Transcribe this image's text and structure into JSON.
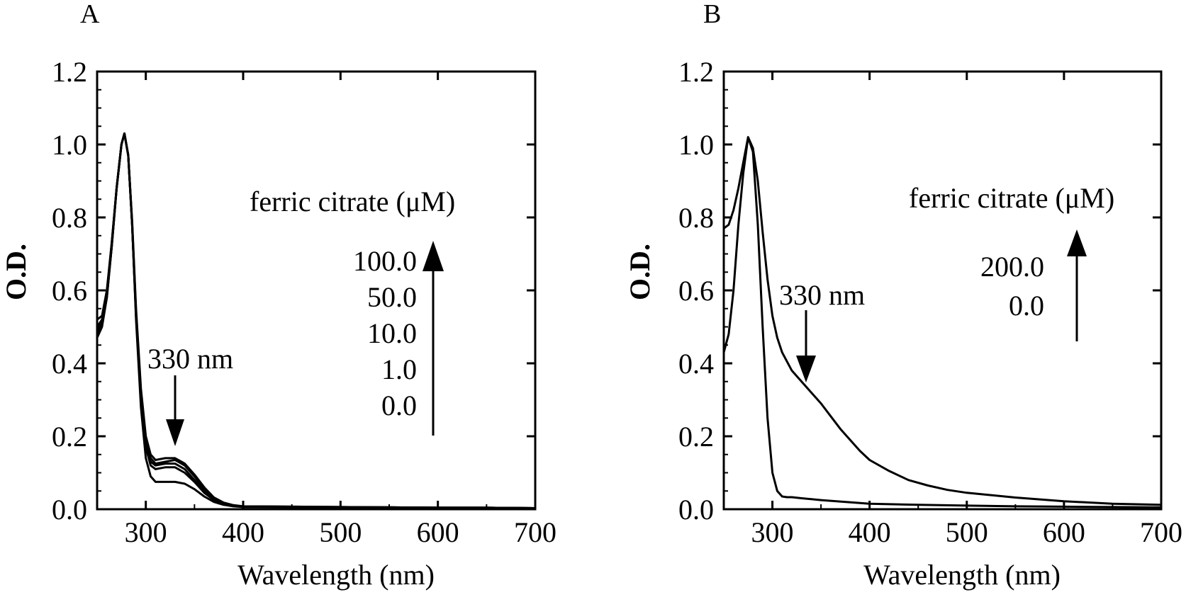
{
  "chart_data": [
    {
      "type": "line",
      "panel_label": "A",
      "xlabel": "Wavelength (nm)",
      "ylabel": "O.D.",
      "xlim": [
        250,
        700
      ],
      "ylim": [
        0,
        1.2
      ],
      "xticks": [
        300,
        400,
        500,
        600,
        700
      ],
      "yticks": [
        0.0,
        0.2,
        0.4,
        0.6,
        0.8,
        1.0,
        1.2
      ],
      "grid": false,
      "legend_title": "ferric citrate (μM)",
      "legend_entries": [
        "100.0",
        "50.0",
        "10.0",
        "1.0",
        "0.0"
      ],
      "peak_annotation": "330 nm",
      "peak_annotation_x": 330,
      "series": [
        {
          "name": "0.0",
          "x": [
            250,
            255,
            260,
            265,
            270,
            275,
            278,
            282,
            286,
            290,
            295,
            300,
            305,
            310,
            320,
            330,
            340,
            350,
            360,
            370,
            380,
            390,
            400,
            450,
            500,
            550,
            600,
            650,
            700
          ],
          "y": [
            0.47,
            0.5,
            0.58,
            0.72,
            0.88,
            1.0,
            1.03,
            0.97,
            0.78,
            0.52,
            0.28,
            0.14,
            0.09,
            0.075,
            0.075,
            0.075,
            0.07,
            0.055,
            0.035,
            0.02,
            0.012,
            0.008,
            0.006,
            0.006,
            0.005,
            0.005,
            0.004,
            0.004,
            0.003
          ]
        },
        {
          "name": "1.0",
          "x": [
            250,
            255,
            260,
            265,
            270,
            275,
            278,
            282,
            286,
            290,
            295,
            300,
            305,
            310,
            320,
            330,
            340,
            350,
            360,
            370,
            380,
            390,
            400,
            450,
            500,
            550,
            600,
            650,
            700
          ],
          "y": [
            0.48,
            0.51,
            0.58,
            0.72,
            0.88,
            1.0,
            1.03,
            0.97,
            0.78,
            0.53,
            0.3,
            0.17,
            0.12,
            0.11,
            0.115,
            0.115,
            0.1,
            0.075,
            0.045,
            0.025,
            0.014,
            0.009,
            0.007,
            0.006,
            0.005,
            0.005,
            0.004,
            0.004,
            0.003
          ]
        },
        {
          "name": "10.0",
          "x": [
            250,
            255,
            260,
            265,
            270,
            275,
            278,
            282,
            286,
            290,
            295,
            300,
            305,
            310,
            320,
            330,
            340,
            350,
            360,
            370,
            380,
            390,
            400,
            450,
            500,
            550,
            600,
            650,
            700
          ],
          "y": [
            0.49,
            0.51,
            0.59,
            0.72,
            0.88,
            1.0,
            1.03,
            0.97,
            0.78,
            0.53,
            0.31,
            0.18,
            0.13,
            0.12,
            0.125,
            0.125,
            0.11,
            0.08,
            0.05,
            0.027,
            0.015,
            0.01,
            0.007,
            0.006,
            0.005,
            0.005,
            0.004,
            0.004,
            0.003
          ]
        },
        {
          "name": "50.0",
          "x": [
            250,
            255,
            260,
            265,
            270,
            275,
            278,
            282,
            286,
            290,
            295,
            300,
            305,
            310,
            320,
            330,
            340,
            350,
            360,
            370,
            380,
            390,
            400,
            450,
            500,
            550,
            600,
            650,
            700
          ],
          "y": [
            0.5,
            0.52,
            0.59,
            0.73,
            0.88,
            1.0,
            1.03,
            0.97,
            0.78,
            0.54,
            0.32,
            0.19,
            0.14,
            0.125,
            0.13,
            0.135,
            0.12,
            0.09,
            0.055,
            0.03,
            0.016,
            0.01,
            0.008,
            0.007,
            0.006,
            0.005,
            0.004,
            0.004,
            0.003
          ]
        },
        {
          "name": "100.0",
          "x": [
            250,
            255,
            260,
            265,
            270,
            275,
            278,
            282,
            286,
            290,
            295,
            300,
            305,
            310,
            320,
            330,
            340,
            350,
            360,
            370,
            380,
            390,
            400,
            450,
            500,
            550,
            600,
            650,
            700
          ],
          "y": [
            0.52,
            0.53,
            0.6,
            0.73,
            0.88,
            1.0,
            1.03,
            0.97,
            0.79,
            0.55,
            0.33,
            0.2,
            0.15,
            0.135,
            0.14,
            0.14,
            0.125,
            0.095,
            0.06,
            0.032,
            0.018,
            0.011,
            0.008,
            0.007,
            0.006,
            0.005,
            0.004,
            0.004,
            0.003
          ]
        }
      ]
    },
    {
      "type": "line",
      "panel_label": "B",
      "xlabel": "Wavelength (nm)",
      "ylabel": "O.D.",
      "xlim": [
        250,
        700
      ],
      "ylim": [
        0,
        1.2
      ],
      "xticks": [
        300,
        400,
        500,
        600,
        700
      ],
      "yticks": [
        0.0,
        0.2,
        0.4,
        0.6,
        0.8,
        1.0,
        1.2
      ],
      "grid": false,
      "legend_title": "ferric citrate (μM)",
      "legend_entries": [
        "200.0",
        "0.0"
      ],
      "peak_annotation": "330 nm",
      "peak_annotation_x": 330,
      "series": [
        {
          "name": "0.0",
          "x": [
            250,
            255,
            260,
            265,
            270,
            275,
            280,
            285,
            290,
            295,
            300,
            305,
            310,
            315,
            320,
            330,
            350,
            400,
            450,
            500,
            550,
            600,
            650,
            700
          ],
          "y": [
            0.43,
            0.48,
            0.6,
            0.78,
            0.92,
            1.02,
            0.98,
            0.78,
            0.5,
            0.25,
            0.1,
            0.05,
            0.035,
            0.033,
            0.033,
            0.03,
            0.025,
            0.015,
            0.012,
            0.01,
            0.008,
            0.007,
            0.006,
            0.005
          ]
        },
        {
          "name": "200.0",
          "x": [
            250,
            255,
            260,
            265,
            270,
            275,
            280,
            285,
            290,
            295,
            300,
            305,
            310,
            320,
            330,
            340,
            350,
            360,
            370,
            380,
            390,
            400,
            420,
            440,
            460,
            480,
            500,
            550,
            600,
            650,
            700
          ],
          "y": [
            0.77,
            0.78,
            0.82,
            0.88,
            0.95,
            1.02,
            0.99,
            0.9,
            0.76,
            0.63,
            0.53,
            0.47,
            0.43,
            0.38,
            0.35,
            0.32,
            0.29,
            0.255,
            0.22,
            0.19,
            0.16,
            0.135,
            0.105,
            0.08,
            0.065,
            0.053,
            0.045,
            0.032,
            0.022,
            0.015,
            0.012
          ]
        }
      ]
    }
  ]
}
